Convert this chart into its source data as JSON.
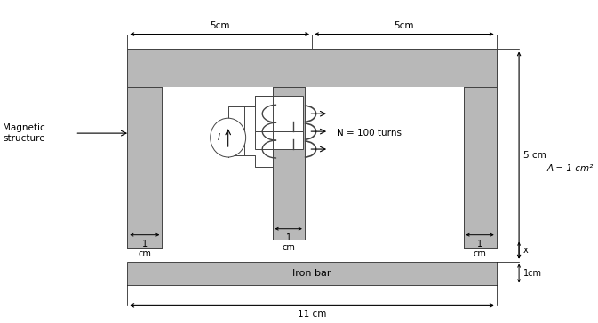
{
  "bg_color": "#ffffff",
  "iron_color": "#b8b8b8",
  "iron_edge": "#444444",
  "text_color": "#000000",
  "fig_width": 6.73,
  "fig_height": 3.64,
  "dpi": 100,
  "labels": {
    "magnetic_structure": "Magnetic\nstructure",
    "left_width": "1\ncm",
    "center_width": "1\ncm",
    "right_width": "1\ncm",
    "top_dim1": "5cm",
    "top_dim2": "5cm",
    "height_5cm": "5 cm",
    "area": "A = 1 cm²",
    "N_turns": "N = 100 turns",
    "current": "I",
    "iron_bar": "Iron bar",
    "bottom_dim": "11 cm",
    "gap_x": "x",
    "bar_height": "1cm"
  }
}
